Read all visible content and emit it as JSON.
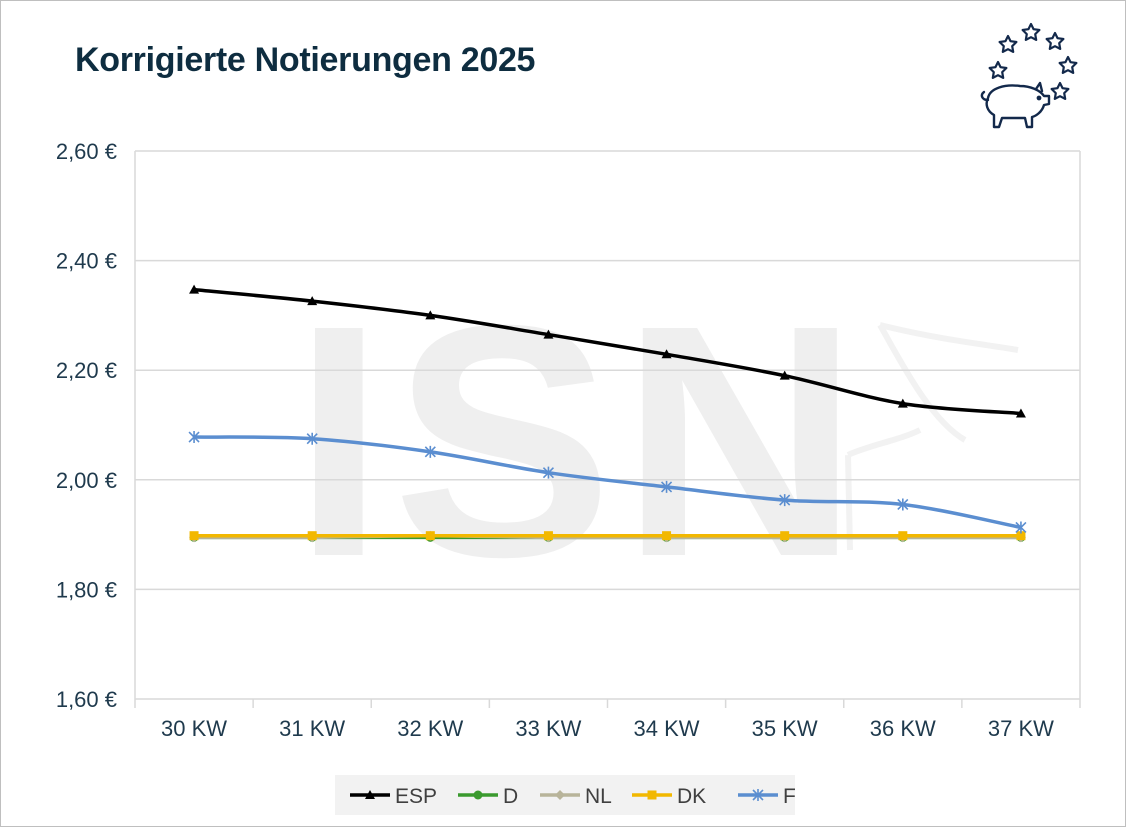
{
  "chart_data": {
    "type": "line",
    "title": "Korrigierte Notierungen 2025",
    "xlabel": "",
    "ylabel": "",
    "categories": [
      "30 KW",
      "31 KW",
      "32 KW",
      "33 KW",
      "34 KW",
      "35 KW",
      "36 KW",
      "37 KW"
    ],
    "y_ticks": [
      1.6,
      1.8,
      2.0,
      2.2,
      2.4,
      2.6
    ],
    "y_tick_labels": [
      "1,60 €",
      "1,80 €",
      "2,00 €",
      "2,20 €",
      "2,40 €",
      "2,60 €"
    ],
    "ylim": [
      1.6,
      2.6
    ],
    "grid": true,
    "legend_position": "bottom",
    "series": [
      {
        "name": "ESP",
        "color": "#000000",
        "marker": "triangle",
        "values": [
          2.347,
          2.326,
          2.3,
          2.265,
          2.229,
          2.19,
          2.139,
          2.121
        ]
      },
      {
        "name": "D",
        "color": "#3a9a2e",
        "marker": "circle",
        "values": [
          1.895,
          1.895,
          1.895,
          1.895,
          1.895,
          1.895,
          1.895,
          1.895
        ]
      },
      {
        "name": "NL",
        "color": "#b8b49a",
        "marker": "diamond",
        "values": [
          1.895,
          1.895,
          1.898,
          1.895,
          1.895,
          1.895,
          1.895,
          1.895
        ]
      },
      {
        "name": "DK",
        "color": "#f2b800",
        "marker": "square",
        "values": [
          1.898,
          1.898,
          1.898,
          1.898,
          1.898,
          1.898,
          1.898,
          1.898
        ]
      },
      {
        "name": "F",
        "color": "#5b8ed0",
        "marker": "star",
        "values": [
          2.078,
          2.075,
          2.051,
          2.013,
          1.987,
          1.963,
          1.955,
          1.913
        ]
      }
    ]
  },
  "watermark": "ISN",
  "logo": {
    "name": "isn-pig-stars-logo",
    "color": "#13294b"
  }
}
